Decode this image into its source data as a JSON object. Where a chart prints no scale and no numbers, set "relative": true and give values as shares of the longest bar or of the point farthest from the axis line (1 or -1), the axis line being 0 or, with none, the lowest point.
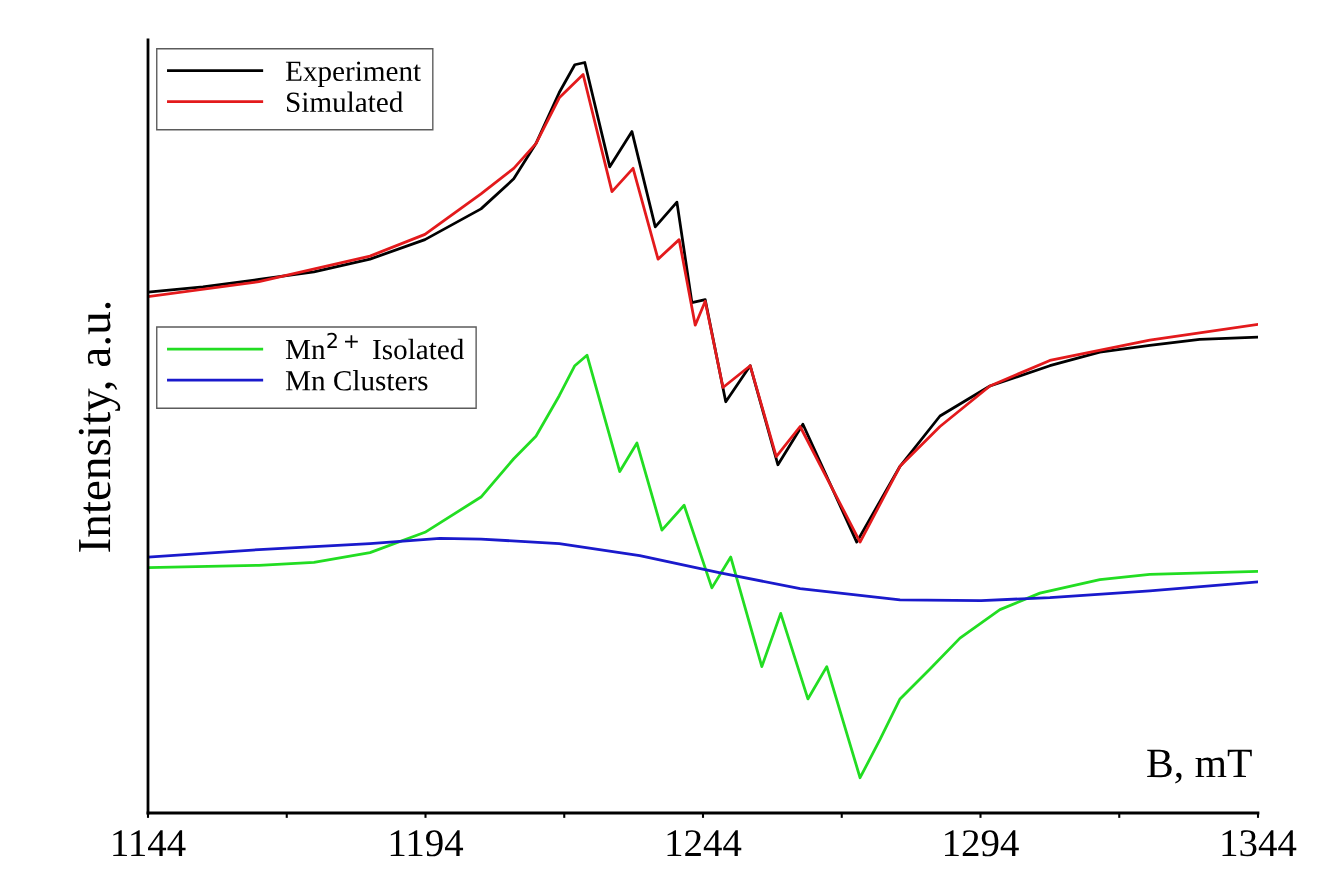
{
  "chart_data": {
    "type": "line",
    "relative": true,
    "xlabel": "B, mT",
    "ylabel": "Intensity, a.u.",
    "xlim": [
      1144,
      1344
    ],
    "xticks": [
      1144,
      {
        "value": 1169,
        "label": null
      },
      1194,
      {
        "value": 1219,
        "label": null
      },
      1244,
      {
        "value": 1269,
        "label": null
      },
      1294,
      {
        "value": 1319,
        "label": null
      },
      1344
    ],
    "tick_labels": "x",
    "legend": "top left",
    "grid": false,
    "marker": "none",
    "line_style": "solid",
    "series": [
      {
        "name": "Experiment",
        "color": "#000000",
        "x": [
          1144,
          1153.9,
          1164,
          1173.9,
          1184,
          1193.9,
          1204,
          1209.9,
          1213.9,
          1218.1,
          1220.9,
          1222.7,
          1227.2,
          1231.2,
          1235.4,
          1239.3,
          1242,
          1244.4,
          1248.1,
          1252.5,
          1257.5,
          1262,
          1271.7,
          1279.5,
          1286.7,
          1295.7,
          1306.5,
          1315.5,
          1324.5,
          1333.5,
          1344
        ],
        "values": [
          0.694,
          0.701,
          0.711,
          0.721,
          0.738,
          0.764,
          0.805,
          0.845,
          0.892,
          0.96,
          0.997,
          1.0,
          0.861,
          0.908,
          0.781,
          0.814,
          0.68,
          0.684,
          0.548,
          0.596,
          0.464,
          0.518,
          0.361,
          0.462,
          0.529,
          0.569,
          0.596,
          0.614,
          0.623,
          0.631,
          0.634
        ]
      },
      {
        "name": "Simulated",
        "color": "#e31a1c",
        "x": [
          1144,
          1164,
          1184,
          1193.9,
          1204,
          1209.9,
          1213.9,
          1218.1,
          1222.4,
          1227.6,
          1231.4,
          1235.9,
          1239.7,
          1242.6,
          1244.4,
          1247.6,
          1252.5,
          1257.2,
          1261.5,
          1272.3,
          1279.5,
          1286.7,
          1295.7,
          1306.5,
          1324.5,
          1344
        ],
        "values": [
          0.688,
          0.708,
          0.742,
          0.771,
          0.825,
          0.859,
          0.892,
          0.953,
          0.984,
          0.828,
          0.859,
          0.738,
          0.764,
          0.65,
          0.682,
          0.567,
          0.596,
          0.475,
          0.515,
          0.361,
          0.462,
          0.515,
          0.569,
          0.603,
          0.63,
          0.651
        ]
      },
      {
        "name": "Mn$^{2+}$ Isolated",
        "color": "#22dd22",
        "x": [
          1144,
          1164,
          1173.9,
          1184,
          1193.9,
          1204,
          1209.9,
          1213.9,
          1218.1,
          1220.9,
          1223.1,
          1229,
          1232.1,
          1236.6,
          1240.6,
          1245.6,
          1249,
          1254.6,
          1258,
          1262.9,
          1266.3,
          1272.3,
          1275.9,
          1279.5,
          1284.9,
          1290.3,
          1297.5,
          1304.7,
          1315.5,
          1324.5,
          1344
        ],
        "values": [
          0.327,
          0.33,
          0.334,
          0.347,
          0.374,
          0.421,
          0.472,
          0.502,
          0.556,
          0.596,
          0.61,
          0.455,
          0.493,
          0.377,
          0.41,
          0.3,
          0.341,
          0.195,
          0.266,
          0.152,
          0.195,
          0.047,
          0.098,
          0.152,
          0.192,
          0.233,
          0.271,
          0.293,
          0.311,
          0.318,
          0.322
        ]
      },
      {
        "name": "Mn Clusters",
        "color": "#1a1acc",
        "x": [
          1144,
          1164,
          1184,
          1196.6,
          1204,
          1218.1,
          1232.6,
          1247.1,
          1261.5,
          1279.5,
          1294.1,
          1306.5,
          1324.5,
          1344
        ],
        "values": [
          0.341,
          0.351,
          0.359,
          0.366,
          0.365,
          0.359,
          0.343,
          0.32,
          0.299,
          0.284,
          0.283,
          0.287,
          0.296,
          0.308
        ]
      }
    ]
  }
}
